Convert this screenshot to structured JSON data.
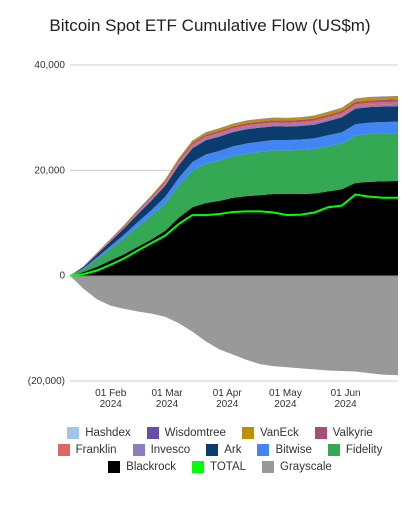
{
  "chart_data": {
    "type": "area",
    "title": "Bitcoin Spot ETF Cumulative Flow (US$m)",
    "xlabel": "",
    "ylabel": "",
    "ylim": [
      -20000,
      40000
    ],
    "y_ticks": [
      "40,000",
      "20,000",
      "0",
      "(20,000)"
    ],
    "y_tick_values": [
      40000,
      20000,
      0,
      -20000
    ],
    "x_start": "2024-01-11",
    "x_end": "2024-06-28",
    "x_ticks": [
      {
        "date": "2024-02-01",
        "line1": "01 Feb",
        "line2": "2024"
      },
      {
        "date": "2024-03-01",
        "line1": "01 Mar",
        "line2": "2024"
      },
      {
        "date": "2024-04-01",
        "line1": "01 Apr",
        "line2": "2024"
      },
      {
        "date": "2024-05-01",
        "line1": "01 May",
        "line2": "2024"
      },
      {
        "date": "2024-06-01",
        "line1": "01 Jun",
        "line2": "2024"
      }
    ],
    "legend_placement": "bottom",
    "grid": true,
    "x": [
      "2024-01-11",
      "2024-01-18",
      "2024-01-25",
      "2024-02-01",
      "2024-02-08",
      "2024-02-15",
      "2024-02-22",
      "2024-02-29",
      "2024-03-07",
      "2024-03-14",
      "2024-03-21",
      "2024-03-28",
      "2024-04-04",
      "2024-04-11",
      "2024-04-18",
      "2024-04-25",
      "2024-05-02",
      "2024-05-09",
      "2024-05-16",
      "2024-05-23",
      "2024-05-30",
      "2024-06-06",
      "2024-06-13",
      "2024-06-20",
      "2024-06-28"
    ],
    "positive_series": [
      {
        "name": "Blackrock",
        "color": "#000000",
        "values": [
          0,
          700,
          1700,
          2900,
          4100,
          5500,
          6900,
          8500,
          11000,
          13000,
          13800,
          14200,
          14800,
          15100,
          15300,
          15500,
          15500,
          15500,
          15600,
          16000,
          16400,
          17600,
          17800,
          17900,
          18000
        ]
      },
      {
        "name": "Fidelity",
        "color": "#34a853",
        "values": [
          0,
          600,
          1500,
          2300,
          3100,
          3900,
          4600,
          5300,
          6200,
          7000,
          7500,
          7700,
          7900,
          8100,
          8200,
          8300,
          8300,
          8400,
          8500,
          8600,
          8700,
          9000,
          9100,
          9100,
          9100
        ]
      },
      {
        "name": "Bitwise",
        "color": "#4285f4",
        "values": [
          0,
          120,
          300,
          450,
          620,
          800,
          970,
          1150,
          1350,
          1550,
          1700,
          1800,
          1850,
          1900,
          1950,
          1950,
          1950,
          1960,
          1990,
          2050,
          2100,
          2150,
          2150,
          2150,
          2150
        ]
      },
      {
        "name": "Ark",
        "color": "#0b3c6e",
        "values": [
          0,
          250,
          600,
          900,
          1200,
          1500,
          1800,
          2100,
          2400,
          2600,
          2700,
          2700,
          2700,
          2700,
          2650,
          2600,
          2550,
          2550,
          2600,
          2700,
          2850,
          2950,
          2950,
          2950,
          2950
        ]
      },
      {
        "name": "Invesco",
        "color": "#8e7cc3",
        "values": [
          0,
          60,
          120,
          170,
          220,
          270,
          310,
          350,
          390,
          420,
          430,
          430,
          430,
          420,
          420,
          410,
          410,
          410,
          410,
          420,
          420,
          430,
          430,
          430,
          430
        ]
      },
      {
        "name": "Franklin",
        "color": "#e06666",
        "values": [
          0,
          30,
          70,
          100,
          130,
          160,
          190,
          220,
          260,
          290,
          300,
          310,
          320,
          330,
          340,
          340,
          340,
          350,
          360,
          370,
          380,
          400,
          400,
          400,
          400
        ]
      },
      {
        "name": "Valkyrie",
        "color": "#a64d79",
        "values": [
          0,
          40,
          90,
          130,
          170,
          210,
          250,
          290,
          330,
          360,
          370,
          380,
          390,
          400,
          400,
          400,
          400,
          400,
          410,
          420,
          440,
          460,
          460,
          460,
          460
        ]
      },
      {
        "name": "VanEck",
        "color": "#bf9000",
        "values": [
          0,
          20,
          60,
          100,
          140,
          190,
          230,
          280,
          330,
          380,
          400,
          420,
          430,
          440,
          440,
          440,
          440,
          450,
          470,
          500,
          530,
          560,
          560,
          560,
          560
        ]
      },
      {
        "name": "Wisdomtree",
        "color": "#674ea7",
        "values": [
          0,
          5,
          10,
          15,
          20,
          25,
          30,
          35,
          40,
          50,
          55,
          60,
          60,
          60,
          60,
          60,
          60,
          60,
          60,
          60,
          65,
          70,
          70,
          70,
          70
        ]
      },
      {
        "name": "Hashdex",
        "color": "#9fc5e8",
        "values": [
          0,
          2,
          4,
          6,
          8,
          10,
          12,
          14,
          16,
          18,
          20,
          20,
          20,
          20,
          20,
          20,
          20,
          20,
          20,
          20,
          20,
          20,
          20,
          20,
          20
        ]
      }
    ],
    "negative_series": [
      {
        "name": "Grayscale",
        "color": "#999999",
        "values": [
          0,
          -2500,
          -4500,
          -5700,
          -6300,
          -6800,
          -7200,
          -7800,
          -9000,
          -10600,
          -12500,
          -14000,
          -15000,
          -16000,
          -16800,
          -17200,
          -17400,
          -17600,
          -17800,
          -18000,
          -18100,
          -18200,
          -18500,
          -18800,
          -18900
        ]
      }
    ],
    "total_series": {
      "name": "TOTAL",
      "color": "#00ff00",
      "values": [
        0,
        300,
        1000,
        2100,
        3300,
        4800,
        6200,
        7600,
        9800,
        11500,
        11500,
        11700,
        12100,
        12200,
        12200,
        12000,
        11500,
        11600,
        12000,
        13000,
        13300,
        15400,
        15000,
        14800,
        14800
      ]
    }
  },
  "legend": {
    "rows": [
      [
        {
          "name": "Hashdex",
          "color": "#9fc5e8"
        },
        {
          "name": "Wisdomtree",
          "color": "#674ea7"
        },
        {
          "name": "VanEck",
          "color": "#bf9000"
        },
        {
          "name": "Valkyrie",
          "color": "#a64d79"
        }
      ],
      [
        {
          "name": "Franklin",
          "color": "#e06666"
        },
        {
          "name": "Invesco",
          "color": "#8e7cc3"
        },
        {
          "name": "Ark",
          "color": "#0b3c6e"
        },
        {
          "name": "Bitwise",
          "color": "#4285f4"
        },
        {
          "name": "Fidelity",
          "color": "#34a853"
        }
      ],
      [
        {
          "name": "Blackrock",
          "color": "#000000"
        },
        {
          "name": "TOTAL",
          "color": "#00ff00"
        },
        {
          "name": "Grayscale",
          "color": "#999999"
        }
      ]
    ]
  }
}
